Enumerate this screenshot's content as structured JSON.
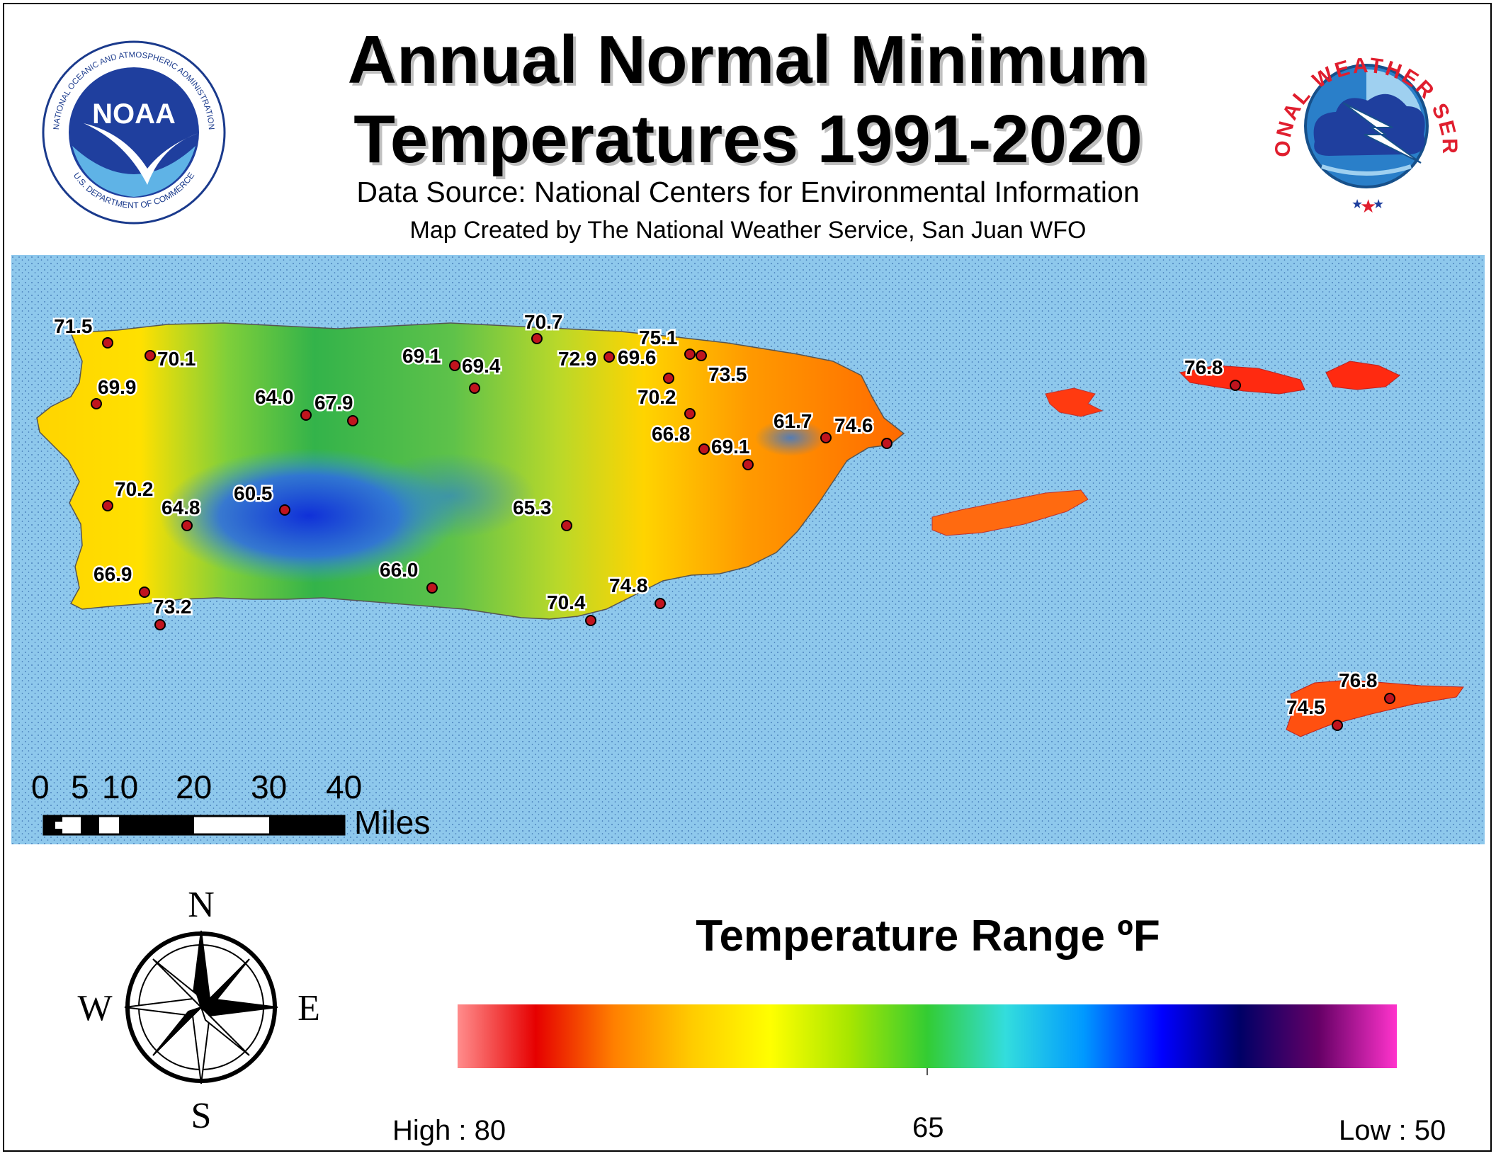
{
  "title_line1": "Annual Normal Minimum",
  "title_line2": "Temperatures 1991-2020",
  "data_source": "Data Source: National Centers for Environmental Information",
  "created_by": "Map Created by The National Weather Service, San Juan WFO",
  "logos": {
    "noaa_center": "NOAA",
    "noaa_ring_top": "NATIONAL OCEANIC AND ATMOSPHERIC ADMINISTRATION",
    "noaa_ring_bottom": "U.S. DEPARTMENT OF COMMERCE",
    "nws_ring": "NATIONAL WEATHER SERVICE"
  },
  "colors": {
    "ocean": "#8ec8ec",
    "ocean_dots": "#3a6fb0",
    "frame": "#000000"
  },
  "stations": [
    {
      "label": "71.5"
    },
    {
      "label": "70.1"
    },
    {
      "label": "69.9"
    },
    {
      "label": "64.0"
    },
    {
      "label": "67.9"
    },
    {
      "label": "69.1"
    },
    {
      "label": "69.4"
    },
    {
      "label": "70.7"
    },
    {
      "label": "72.9"
    },
    {
      "label": "69.6"
    },
    {
      "label": "75.1"
    },
    {
      "label": "73.5"
    },
    {
      "label": "70.2"
    },
    {
      "label": "66.8"
    },
    {
      "label": "69.1"
    },
    {
      "label": "61.7"
    },
    {
      "label": "74.6"
    },
    {
      "label": "70.2"
    },
    {
      "label": "64.8"
    },
    {
      "label": "60.5"
    },
    {
      "label": "65.3"
    },
    {
      "label": "66.0"
    },
    {
      "label": "66.9"
    },
    {
      "label": "73.2"
    },
    {
      "label": "70.4"
    },
    {
      "label": "74.8"
    },
    {
      "label": "76.8"
    },
    {
      "label": "76.8"
    },
    {
      "label": "74.5"
    }
  ],
  "scale_bar": {
    "ticks": [
      "0",
      "5",
      "10",
      "20",
      "30",
      "40"
    ],
    "unit": "Miles"
  },
  "compass": {
    "north": "N",
    "south": "S",
    "east": "E",
    "west": "W"
  },
  "legend": {
    "title": "Temperature Range ºF",
    "high_label": "High : 80",
    "mid_label": "65",
    "low_label": "Low : 50",
    "ramp_colors": [
      "#ff8c8c",
      "#e60000",
      "#ff8000",
      "#ffcc00",
      "#ffff00",
      "#a8e600",
      "#33cc33",
      "#33dddd",
      "#0099ff",
      "#0000ff",
      "#000066",
      "#660066",
      "#ff33cc"
    ]
  }
}
